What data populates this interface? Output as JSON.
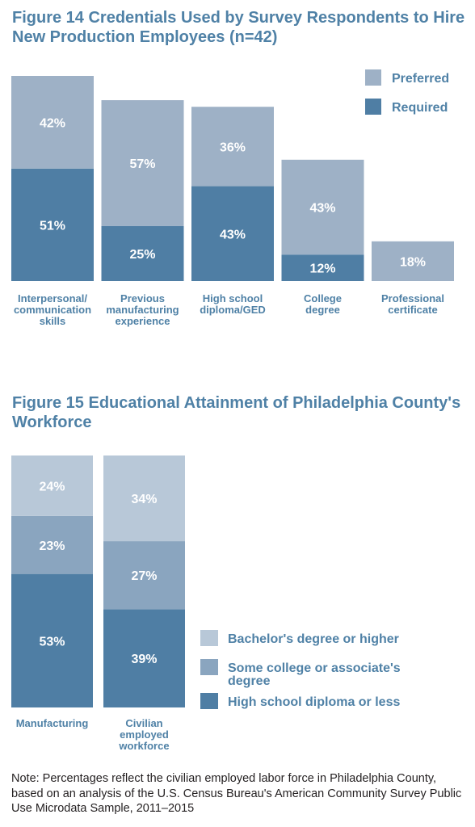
{
  "figure14": {
    "title": "Figure 14 Credentials Used by Survey Respondents to Hire New Production Employees (n=42)"
  },
  "figure15": {
    "title": "Figure 15 Educational Attainment of Philadelphia County's Workforce"
  },
  "note": "Note: Percentages reflect the civilian employed labor force in Philadelphia County, based on an analysis of the U.S. Census Bureau's American Community Survey Public Use Microdata Sample, 2011–2015",
  "colors": {
    "preferred": "#9eb1c6",
    "required": "#4f7ea4",
    "bachelors": "#b8c8d8",
    "some_college": "#8aa5bf",
    "high_school": "#4f7ea4",
    "label": "#4f81a6"
  },
  "chart_data": [
    {
      "type": "bar",
      "stacked": true,
      "title": "Figure 14 Credentials Used by Survey Respondents to Hire New Production Employees (n=42)",
      "categories": [
        [
          "Interpersonal/",
          "communication",
          "skills"
        ],
        [
          "Previous",
          "manufacturing",
          "experience"
        ],
        [
          "High school",
          "diploma/GED"
        ],
        [
          "College",
          "degree"
        ],
        [
          "Professional",
          "certificate"
        ]
      ],
      "series": [
        {
          "name": "Required",
          "values": [
            51,
            25,
            43,
            12,
            0
          ],
          "labels": [
            "51%",
            "25%",
            "43%",
            "12%",
            ""
          ]
        },
        {
          "name": "Preferred",
          "values": [
            42,
            57,
            36,
            43,
            18
          ],
          "labels": [
            "42%",
            "57%",
            "36%",
            "43%",
            "18%"
          ]
        }
      ],
      "legend": [
        "Preferred",
        "Required"
      ],
      "legend_position": "top-right",
      "ylim": [
        0,
        100
      ],
      "grid": false
    },
    {
      "type": "bar",
      "stacked": true,
      "title": "Figure 15 Educational Attainment of Philadelphia County's Workforce",
      "categories": [
        [
          "Manufacturing"
        ],
        [
          "Civilian",
          "employed",
          "workforce"
        ]
      ],
      "series": [
        {
          "name": "High school diploma or less",
          "values": [
            53,
            39
          ],
          "labels": [
            "53%",
            "39%"
          ]
        },
        {
          "name": "Some college or associate's degree",
          "values": [
            23,
            27
          ],
          "labels": [
            "23%",
            "27%"
          ]
        },
        {
          "name": "Bachelor's degree or higher",
          "values": [
            24,
            34
          ],
          "labels": [
            "24%",
            "34%"
          ]
        }
      ],
      "legend": [
        [
          "Bachelor's degree or higher"
        ],
        [
          "Some college or associate's",
          "degree"
        ],
        [
          "High school diploma or less"
        ]
      ],
      "legend_position": "right",
      "ylim": [
        0,
        100
      ],
      "grid": false
    }
  ]
}
